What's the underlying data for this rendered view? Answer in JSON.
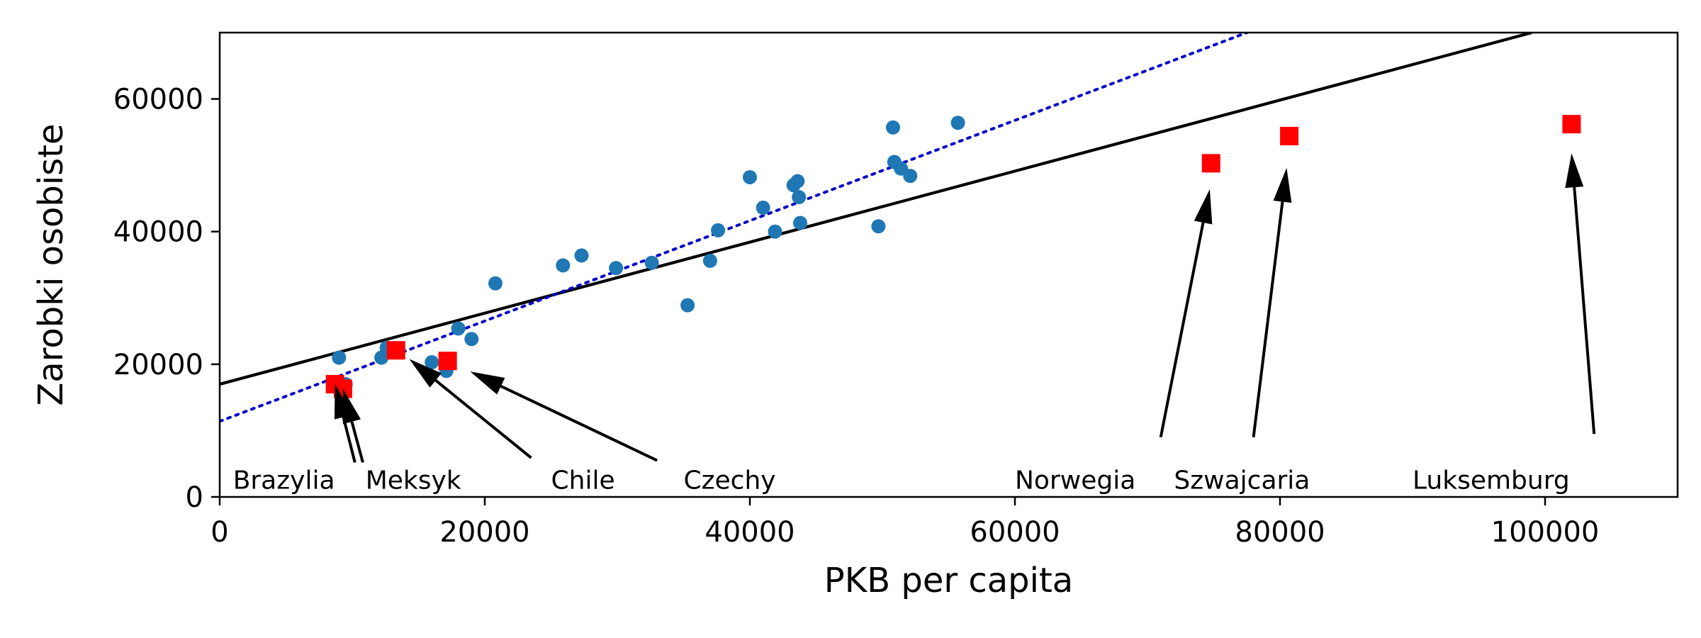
{
  "chart_data": {
    "type": "scatter",
    "title": "",
    "xlabel": "PKB per capita",
    "ylabel": "Zarobki osobiste",
    "xlim": [
      0,
      110000
    ],
    "ylim": [
      0,
      70000
    ],
    "xticks": [
      0,
      20000,
      40000,
      60000,
      80000,
      100000
    ],
    "yticks": [
      0,
      20000,
      40000,
      60000
    ],
    "grid": false,
    "colors": {
      "points": "#1f77b4",
      "highlight": "#ff0000",
      "fit_all": "#000000",
      "fit_partial": "#0000cc"
    },
    "series": [
      {
        "marker": "circle",
        "x": [
          9000,
          9500,
          12200,
          12600,
          16000,
          17100,
          18000,
          19000,
          20800,
          25900,
          27300,
          29900,
          32600,
          35300,
          37000,
          37600,
          40000,
          41000,
          41900,
          43300,
          43600,
          43700,
          43800,
          49700,
          50800,
          50900,
          51400,
          52100,
          55700
        ],
        "y": [
          21000,
          17000,
          21000,
          22500,
          20300,
          19000,
          25400,
          23800,
          32200,
          34900,
          36400,
          34500,
          35300,
          28900,
          35600,
          40200,
          48200,
          43600,
          40000,
          47000,
          47600,
          45200,
          41300,
          40800,
          55700,
          50500,
          49500,
          48400,
          56400
        ]
      },
      {
        "marker": "square",
        "x": [
          8700,
          9300,
          13300,
          17200,
          74800,
          80700,
          102000
        ],
        "y": [
          17000,
          16300,
          22100,
          20500,
          50300,
          54400,
          56200
        ]
      }
    ],
    "lines": [
      {
        "style": "solid",
        "x": [
          0,
          99000
        ],
        "y": [
          17000,
          70000
        ]
      },
      {
        "style": "dotted",
        "x": [
          0,
          77500
        ],
        "y": [
          11400,
          70000
        ]
      }
    ],
    "annotations": [
      {
        "text": "Brazylia",
        "x": 1000,
        "y": 1000,
        "arrow_from": [
          10200,
          5200
        ],
        "arrow_to": [
          8700,
          17000
        ]
      },
      {
        "text": "Meksyk",
        "x": 11000,
        "y": 1000,
        "arrow_from": [
          10800,
          5200
        ],
        "arrow_to": [
          9300,
          16300
        ]
      },
      {
        "text": "Chile",
        "x": 25000,
        "y": 1000,
        "arrow_from": [
          23500,
          5900
        ],
        "arrow_to": [
          14300,
          20800
        ]
      },
      {
        "text": "Czechy",
        "x": 35000,
        "y": 1000,
        "arrow_from": [
          33000,
          5500
        ],
        "arrow_to": [
          18900,
          18900
        ]
      },
      {
        "text": "Norwegia",
        "x": 60000,
        "y": 1000,
        "arrow_from": [
          71000,
          9000
        ],
        "arrow_to": [
          74700,
          46400
        ]
      },
      {
        "text": "Szwajcaria",
        "x": 72000,
        "y": 1000,
        "arrow_from": [
          78000,
          9000
        ],
        "arrow_to": [
          80500,
          49600
        ]
      },
      {
        "text": "Luksemburg",
        "x": 90000,
        "y": 1000,
        "arrow_from": [
          103700,
          9500
        ],
        "arrow_to": [
          102000,
          51800
        ]
      }
    ]
  }
}
